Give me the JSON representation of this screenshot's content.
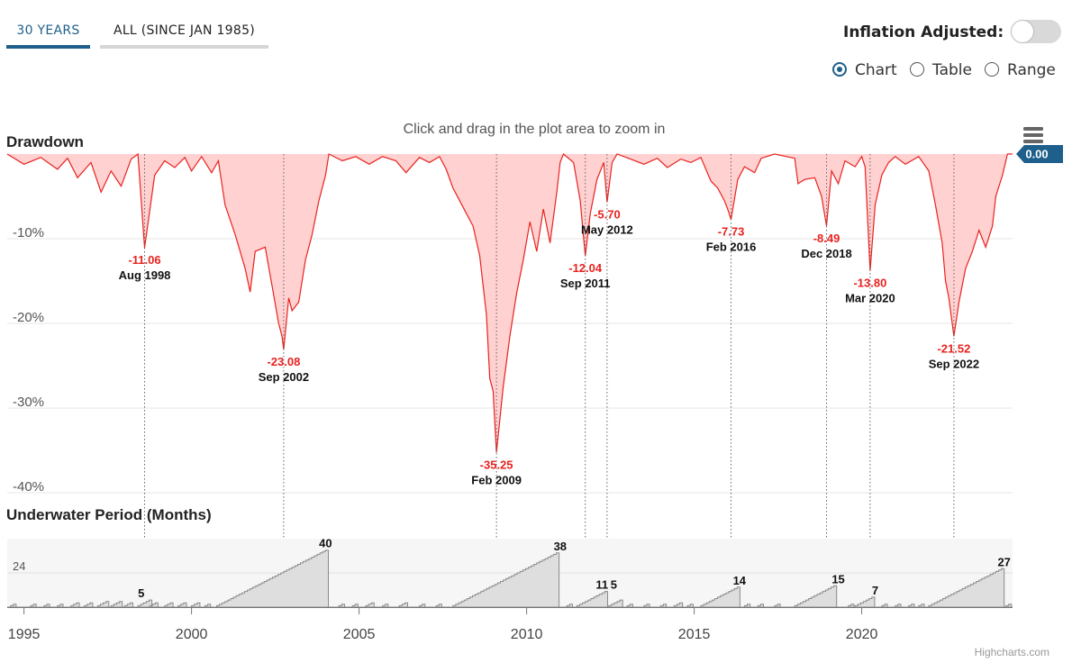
{
  "tabs": [
    {
      "label": "30 YEARS",
      "active": true
    },
    {
      "label": "ALL (SINCE JAN 1985)",
      "active": false
    }
  ],
  "toggle": {
    "label": "Inflation Adjusted:",
    "on": false
  },
  "view_options": [
    {
      "label": "Chart",
      "checked": true
    },
    {
      "label": "Table",
      "checked": false
    },
    {
      "label": "Range",
      "checked": false
    }
  ],
  "zoom_hint": "Click and drag in the plot area to zoom in",
  "credits": "Highcharts.com",
  "colors": {
    "drawdown_line": "#e8231f",
    "drawdown_fill": "#ffd1d1",
    "underwater_fill": "#dedede",
    "accent": "#1f5f8b"
  },
  "chart_data": [
    {
      "type": "area",
      "title": "Drawdown",
      "ylabel": "",
      "yticks": [
        -10,
        -20,
        -30,
        -40
      ],
      "yticks_labels": [
        "-10%",
        "-20%",
        "-30%",
        "-40%"
      ],
      "ylim": [
        -40,
        0
      ],
      "current_value": "0.00",
      "x_range": [
        1994.5,
        2024.5
      ],
      "points": [
        [
          1994.5,
          0
        ],
        [
          1995.0,
          -1.2
        ],
        [
          1995.5,
          -0.4
        ],
        [
          1996.0,
          -1.8
        ],
        [
          1996.3,
          -0.5
        ],
        [
          1996.6,
          -2.8
        ],
        [
          1997.0,
          -1.0
        ],
        [
          1997.3,
          -4.5
        ],
        [
          1997.6,
          -2.0
        ],
        [
          1997.9,
          -3.8
        ],
        [
          1998.2,
          -0.6
        ],
        [
          1998.4,
          0
        ],
        [
          1998.6,
          -11.06
        ],
        [
          1998.9,
          -2.5
        ],
        [
          1999.2,
          -0.8
        ],
        [
          1999.5,
          -1.6
        ],
        [
          1999.8,
          -0.4
        ],
        [
          2000.0,
          -2.0
        ],
        [
          2000.3,
          -0.3
        ],
        [
          2000.6,
          -2.2
        ],
        [
          2000.8,
          -0.8
        ],
        [
          2001.0,
          -6.0
        ],
        [
          2001.3,
          -9.5
        ],
        [
          2001.6,
          -13.5
        ],
        [
          2001.75,
          -16.3
        ],
        [
          2001.9,
          -11.5
        ],
        [
          2002.2,
          -11.0
        ],
        [
          2002.4,
          -15.5
        ],
        [
          2002.6,
          -20.0
        ],
        [
          2002.7,
          -21.5
        ],
        [
          2002.75,
          -23.08
        ],
        [
          2002.9,
          -17.0
        ],
        [
          2003.0,
          -18.5
        ],
        [
          2003.2,
          -17.5
        ],
        [
          2003.4,
          -12.5
        ],
        [
          2003.6,
          -9.5
        ],
        [
          2003.8,
          -5.5
        ],
        [
          2004.0,
          -2.5
        ],
        [
          2004.1,
          0
        ],
        [
          2004.5,
          -0.8
        ],
        [
          2004.9,
          -0.3
        ],
        [
          2005.3,
          -1.2
        ],
        [
          2005.7,
          -0.3
        ],
        [
          2006.1,
          -0.8
        ],
        [
          2006.4,
          -2.2
        ],
        [
          2006.8,
          -0.4
        ],
        [
          2007.1,
          -1.0
        ],
        [
          2007.4,
          -0.3
        ],
        [
          2007.6,
          -1.8
        ],
        [
          2007.8,
          -4.0
        ],
        [
          2008.0,
          -5.5
        ],
        [
          2008.2,
          -7.0
        ],
        [
          2008.4,
          -8.5
        ],
        [
          2008.6,
          -12.0
        ],
        [
          2008.8,
          -19.0
        ],
        [
          2008.9,
          -26.5
        ],
        [
          2009.0,
          -28.0
        ],
        [
          2009.1,
          -35.25
        ],
        [
          2009.3,
          -27.5
        ],
        [
          2009.5,
          -21.5
        ],
        [
          2009.7,
          -16.5
        ],
        [
          2009.9,
          -12.5
        ],
        [
          2010.1,
          -8.0
        ],
        [
          2010.3,
          -11.5
        ],
        [
          2010.5,
          -6.5
        ],
        [
          2010.7,
          -10.5
        ],
        [
          2010.9,
          -4.5
        ],
        [
          2011.0,
          -1.0
        ],
        [
          2011.1,
          0
        ],
        [
          2011.4,
          -1.0
        ],
        [
          2011.6,
          -5.5
        ],
        [
          2011.75,
          -12.04
        ],
        [
          2011.9,
          -7.0
        ],
        [
          2012.1,
          -3.0
        ],
        [
          2012.3,
          -1.0
        ],
        [
          2012.4,
          -5.7
        ],
        [
          2012.55,
          -1.0
        ],
        [
          2012.7,
          0
        ],
        [
          2013.1,
          -0.6
        ],
        [
          2013.5,
          -1.2
        ],
        [
          2013.9,
          -0.5
        ],
        [
          2014.2,
          -1.6
        ],
        [
          2014.6,
          -0.6
        ],
        [
          2014.9,
          -1.0
        ],
        [
          2015.2,
          -0.4
        ],
        [
          2015.5,
          -3.2
        ],
        [
          2015.7,
          -4.0
        ],
        [
          2015.9,
          -5.5
        ],
        [
          2016.0,
          -6.5
        ],
        [
          2016.1,
          -7.73
        ],
        [
          2016.3,
          -3.0
        ],
        [
          2016.5,
          -1.5
        ],
        [
          2016.8,
          -2.2
        ],
        [
          2017.0,
          -0.5
        ],
        [
          2017.4,
          0
        ],
        [
          2018.0,
          -0.5
        ],
        [
          2018.1,
          -3.5
        ],
        [
          2018.3,
          -3.0
        ],
        [
          2018.6,
          -2.8
        ],
        [
          2018.8,
          -5.0
        ],
        [
          2018.95,
          -8.49
        ],
        [
          2019.1,
          -2.0
        ],
        [
          2019.3,
          -3.5
        ],
        [
          2019.5,
          -0.8
        ],
        [
          2019.8,
          -1.5
        ],
        [
          2020.0,
          -0.3
        ],
        [
          2020.1,
          -1.5
        ],
        [
          2020.25,
          -13.8
        ],
        [
          2020.4,
          -6.0
        ],
        [
          2020.6,
          -2.5
        ],
        [
          2020.8,
          -1.0
        ],
        [
          2021.0,
          -0.3
        ],
        [
          2021.3,
          -1.2
        ],
        [
          2021.7,
          -0.3
        ],
        [
          2022.0,
          -2.0
        ],
        [
          2022.2,
          -6.0
        ],
        [
          2022.4,
          -10.5
        ],
        [
          2022.5,
          -15.0
        ],
        [
          2022.6,
          -17.0
        ],
        [
          2022.75,
          -21.52
        ],
        [
          2022.9,
          -17.5
        ],
        [
          2023.1,
          -13.5
        ],
        [
          2023.3,
          -11.5
        ],
        [
          2023.5,
          -9.0
        ],
        [
          2023.7,
          -11.0
        ],
        [
          2023.9,
          -8.5
        ],
        [
          2024.0,
          -5.0
        ],
        [
          2024.2,
          -2.5
        ],
        [
          2024.35,
          0
        ],
        [
          2024.5,
          0
        ]
      ],
      "annotations": [
        {
          "x": 1998.6,
          "y": -11.06,
          "value": "-11.06",
          "date": "Aug 1998"
        },
        {
          "x": 2002.75,
          "y": -23.08,
          "value": "-23.08",
          "date": "Sep 2002"
        },
        {
          "x": 2009.1,
          "y": -35.25,
          "value": "-35.25",
          "date": "Feb 2009"
        },
        {
          "x": 2011.75,
          "y": -12.04,
          "value": "-12.04",
          "date": "Sep 2011"
        },
        {
          "x": 2012.4,
          "y": -5.7,
          "value": "-5.70",
          "date": "May 2012"
        },
        {
          "x": 2016.1,
          "y": -7.73,
          "value": "-7.73",
          "date": "Feb 2016"
        },
        {
          "x": 2018.95,
          "y": -8.49,
          "value": "-8.49",
          "date": "Dec 2018"
        },
        {
          "x": 2020.25,
          "y": -13.8,
          "value": "-13.80",
          "date": "Mar 2020"
        },
        {
          "x": 2022.75,
          "y": -21.52,
          "value": "-21.52",
          "date": "Sep 2022"
        }
      ]
    },
    {
      "type": "area",
      "title": "Underwater Period (Months)",
      "yticks": [
        24
      ],
      "yticks_labels": [
        "24"
      ],
      "ylim": [
        0,
        48
      ],
      "x_range": [
        1994.5,
        2024.5
      ],
      "xticks": [
        1995,
        2000,
        2005,
        2010,
        2015,
        2020
      ],
      "xticks_labels": [
        "1995",
        "2000",
        "2005",
        "2010",
        "2015",
        "2020"
      ],
      "episodes": [
        [
          1994.6,
          2
        ],
        [
          1995.2,
          2
        ],
        [
          1995.6,
          2
        ],
        [
          1996.0,
          2
        ],
        [
          1996.4,
          3
        ],
        [
          1996.8,
          3
        ],
        [
          1997.2,
          4
        ],
        [
          1997.6,
          4
        ],
        [
          1998.0,
          3
        ],
        [
          1998.4,
          5
        ],
        [
          1998.75,
          3
        ],
        [
          1999.2,
          3
        ],
        [
          1999.6,
          3
        ],
        [
          2000.0,
          3
        ],
        [
          2000.4,
          2
        ],
        [
          2000.75,
          40
        ],
        [
          2004.4,
          2
        ],
        [
          2004.8,
          2
        ],
        [
          2005.2,
          3
        ],
        [
          2005.7,
          2
        ],
        [
          2006.2,
          3
        ],
        [
          2006.8,
          2
        ],
        [
          2007.3,
          2
        ],
        [
          2007.8,
          38
        ],
        [
          2011.2,
          2
        ],
        [
          2011.5,
          11
        ],
        [
          2012.45,
          5
        ],
        [
          2013.0,
          2
        ],
        [
          2013.5,
          2
        ],
        [
          2014.0,
          2
        ],
        [
          2014.4,
          3
        ],
        [
          2014.8,
          2
        ],
        [
          2015.2,
          14
        ],
        [
          2016.5,
          2
        ],
        [
          2016.9,
          2
        ],
        [
          2017.4,
          2
        ],
        [
          2018.0,
          15
        ],
        [
          2019.6,
          2
        ],
        [
          2019.8,
          7
        ],
        [
          2020.6,
          2
        ],
        [
          2021.0,
          2
        ],
        [
          2021.4,
          2
        ],
        [
          2021.7,
          2
        ],
        [
          2022.0,
          27
        ],
        [
          2024.3,
          2
        ]
      ],
      "annotations": [
        {
          "x": 1998.5,
          "value": "5"
        },
        {
          "x": 2004.0,
          "value": "40"
        },
        {
          "x": 2011.0,
          "value": "38"
        },
        {
          "x": 2012.25,
          "value": "11"
        },
        {
          "x": 2012.6,
          "value": "5"
        },
        {
          "x": 2016.35,
          "value": "14"
        },
        {
          "x": 2019.3,
          "value": "15"
        },
        {
          "x": 2020.4,
          "value": "7"
        },
        {
          "x": 2024.25,
          "value": "27"
        }
      ]
    }
  ]
}
